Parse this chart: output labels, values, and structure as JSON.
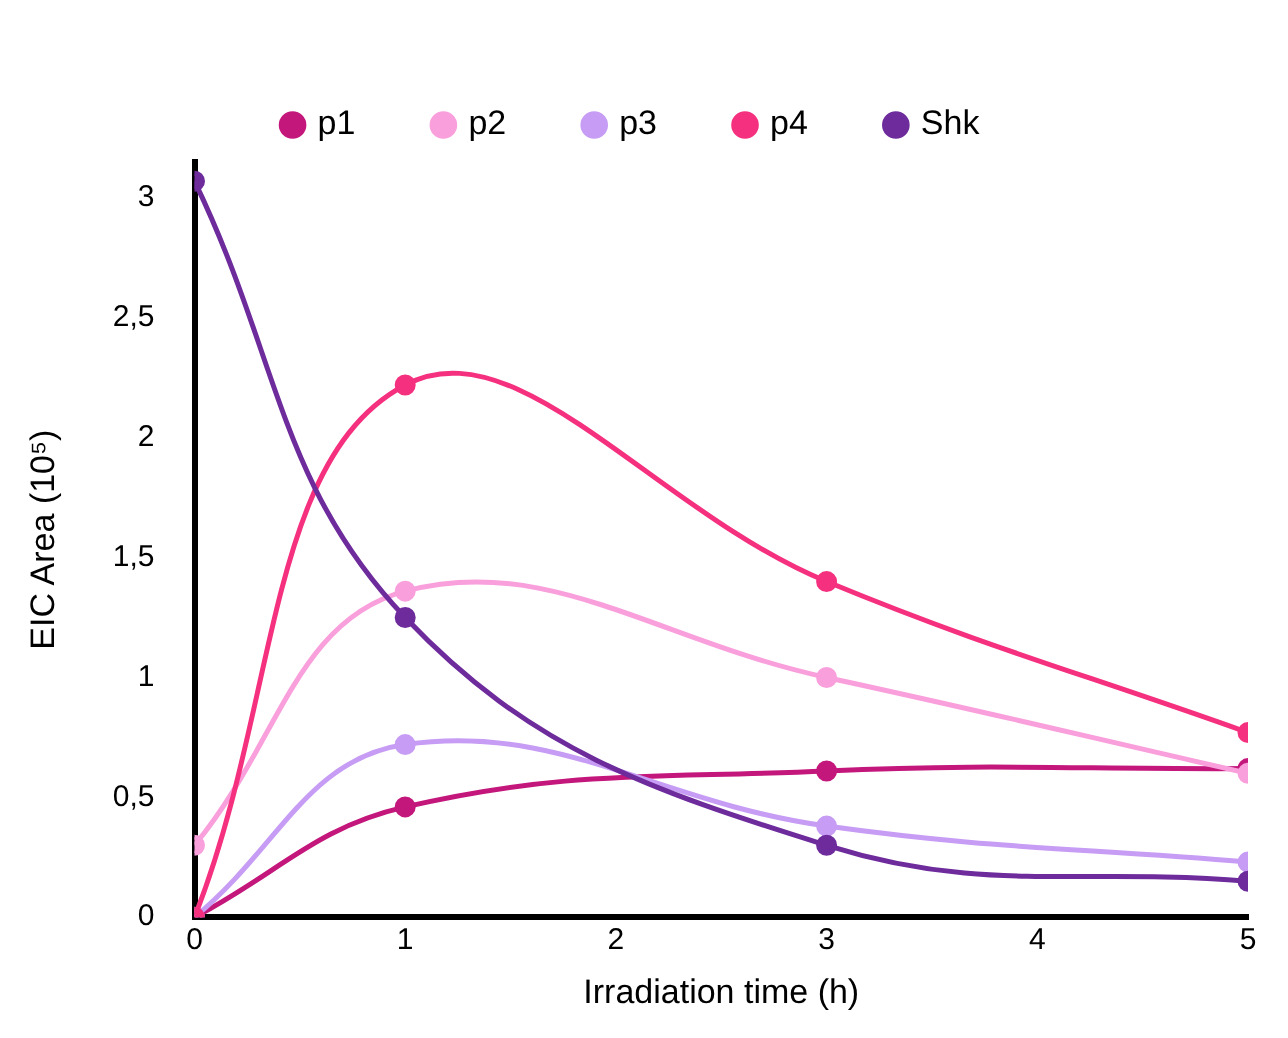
{
  "chart_data": {
    "type": "line",
    "xlabel": "Irradiation time (h)",
    "ylabel": "EIC Area (10⁵)",
    "x": [
      0,
      1,
      3,
      5
    ],
    "series": [
      {
        "name": "p1",
        "color": "#c4177c",
        "values": [
          0,
          0.46,
          0.61,
          0.62
        ]
      },
      {
        "name": "p2",
        "color": "#f99fdc",
        "values": [
          0.3,
          1.36,
          1.0,
          0.6
        ]
      },
      {
        "name": "p3",
        "color": "#c79cf4",
        "values": [
          0,
          0.72,
          0.38,
          0.23
        ]
      },
      {
        "name": "p4",
        "color": "#f5317f",
        "values": [
          0,
          2.22,
          1.4,
          0.77
        ]
      },
      {
        "name": "Shk",
        "color": "#6e2b9c",
        "values": [
          3.07,
          1.25,
          0.3,
          0.15
        ]
      }
    ],
    "xlim": [
      0,
      5
    ],
    "xticks": [
      0,
      1,
      2,
      3,
      4,
      5
    ],
    "ylim": [
      0,
      3.15
    ],
    "yticks": [
      0,
      {
        "value": 0.5,
        "label": "0,5"
      },
      1,
      {
        "value": 1.5,
        "label": "1,5"
      },
      2,
      {
        "value": 2.5,
        "label": "2,5"
      },
      3
    ],
    "grid": false,
    "legend": "top",
    "marker": "circle",
    "line_style": "solid"
  }
}
